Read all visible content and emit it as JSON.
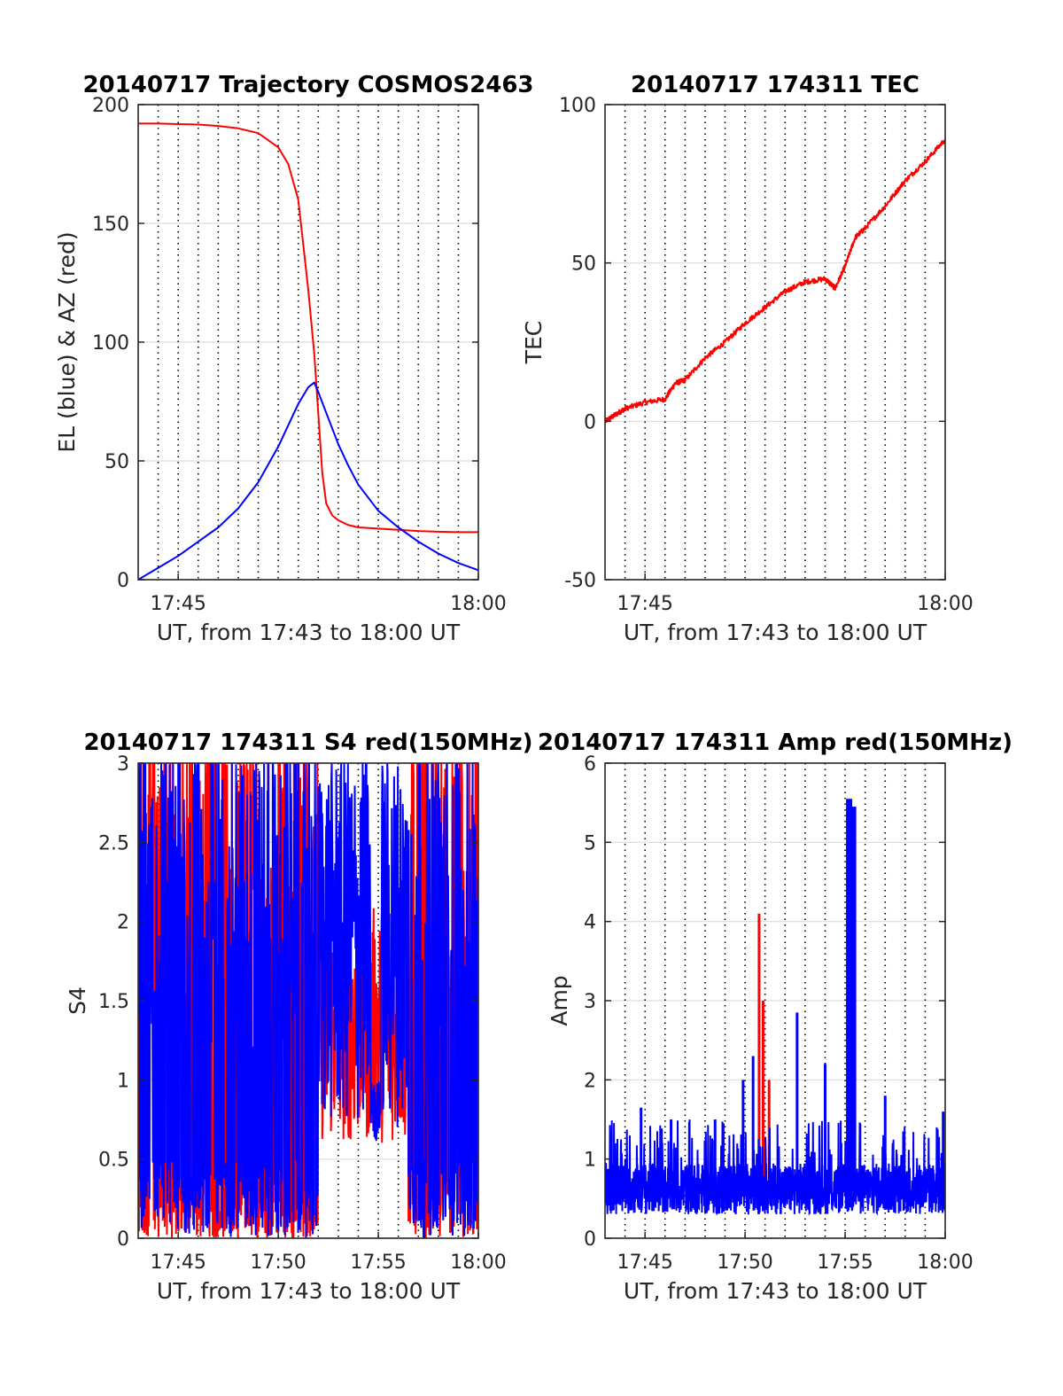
{
  "figure": {
    "colors": {
      "red": "#ff0000",
      "blue": "#0000ff",
      "axis": "#262626",
      "grid": "#dcdcdc"
    }
  },
  "chart_data": [
    {
      "type": "line",
      "title": "20140717 Trajectory COSMOS2463",
      "xlabel": "UT, from 17:43 to 18:00 UT",
      "ylabel": "EL (blue) & AZ (red)",
      "ylim": [
        0,
        200
      ],
      "yticks": [
        "0",
        "50",
        "100",
        "150",
        "200"
      ],
      "xlim_minutes": [
        43,
        60
      ],
      "xticks": [
        {
          "value": 45,
          "label": "17:45"
        },
        {
          "value": 60,
          "label": "18:00"
        }
      ],
      "vertical_dotted_grid_minutes": [
        44,
        45,
        46,
        47,
        48,
        49,
        50,
        51,
        52,
        53,
        54,
        55,
        56,
        57,
        58,
        59
      ],
      "grid": true,
      "series": [
        {
          "color": "red",
          "note": "AZ",
          "x": [
            43,
            44,
            45,
            46,
            47,
            48,
            49,
            50,
            50.5,
            51,
            51.5,
            51.8,
            52,
            52.2,
            52.4,
            52.7,
            53,
            53.5,
            54,
            55,
            56,
            57,
            58,
            59,
            60
          ],
          "y": [
            192,
            192,
            191.8,
            191.6,
            191,
            190,
            188,
            182,
            175,
            160,
            122,
            95,
            70,
            45,
            32,
            27,
            25,
            23,
            22,
            21.5,
            21,
            20.5,
            20.2,
            20,
            20
          ]
        },
        {
          "color": "blue",
          "note": "EL",
          "x": [
            43,
            44,
            45,
            46,
            47,
            48,
            49,
            50,
            50.5,
            51,
            51.5,
            51.8,
            52,
            52.5,
            53,
            53.5,
            54,
            55,
            56,
            57,
            58,
            59,
            60
          ],
          "y": [
            0,
            5,
            10,
            16,
            22,
            30,
            41,
            56,
            65,
            74,
            81,
            83,
            79,
            68,
            57,
            48,
            40,
            29,
            22,
            16,
            11,
            7,
            4
          ]
        }
      ]
    },
    {
      "type": "line",
      "title": "20140717 174311 TEC",
      "xlabel": "UT, from 17:43 to 18:00 UT",
      "ylabel": "TEC",
      "ylim": [
        -50,
        100
      ],
      "yticks": [
        "-50",
        "0",
        "50",
        "100"
      ],
      "xlim_minutes": [
        43,
        60
      ],
      "xticks": [
        {
          "value": 45,
          "label": "17:45"
        },
        {
          "value": 60,
          "label": "18:00"
        }
      ],
      "vertical_dotted_grid_minutes": [
        44,
        45,
        46,
        47,
        48,
        49,
        50,
        51,
        52,
        53,
        54,
        55,
        56,
        57,
        58,
        59
      ],
      "grid": true,
      "series": [
        {
          "color": "red",
          "x": [
            43,
            43.5,
            44,
            45,
            46,
            46.5,
            47,
            48,
            49,
            50,
            51,
            52,
            53,
            54,
            54.5,
            55,
            55.5,
            56,
            57,
            58,
            59,
            60
          ],
          "y": [
            0,
            2,
            4,
            6,
            7,
            12,
            13,
            20,
            25,
            31,
            36,
            41,
            44,
            45,
            42,
            49,
            58,
            61,
            68,
            76,
            82,
            89
          ]
        }
      ]
    },
    {
      "type": "line",
      "title": "20140717 174311 S4 red(150MHz)",
      "xlabel": "UT, from 17:43 to 18:00 UT",
      "ylabel": "S4",
      "ylim": [
        0,
        3
      ],
      "yticks": [
        "0",
        "0.5",
        "1",
        "1.5",
        "2",
        "2.5",
        "3"
      ],
      "xlim_minutes": [
        43,
        60
      ],
      "xticks": [
        {
          "value": 45,
          "label": "17:45"
        },
        {
          "value": 50,
          "label": "17:50"
        },
        {
          "value": 55,
          "label": "17:55"
        },
        {
          "value": 60,
          "label": "18:00"
        }
      ],
      "vertical_dotted_grid_minutes": [
        44,
        45,
        46,
        47,
        48,
        49,
        50,
        51,
        52,
        53,
        54,
        55,
        56,
        57,
        58,
        59
      ],
      "grid": true,
      "series": [
        {
          "color": "red",
          "note": "values clipped at 3; dense rapid oscillation 0–3 across the whole interval, band 0.5–2 between 17:52 and 17:56"
        },
        {
          "color": "blue",
          "note": "values clipped at 3; dense rapid oscillation 0–3, dips near 0.6 around 17:55"
        }
      ]
    },
    {
      "type": "line",
      "title": "20140717 174311 Amp red(150MHz)",
      "xlabel": "UT, from 17:43 to 18:00 UT",
      "ylabel": "Amp",
      "ylim": [
        0,
        6
      ],
      "yticks": [
        "0",
        "1",
        "2",
        "3",
        "4",
        "5",
        "6"
      ],
      "xlim_minutes": [
        43,
        60
      ],
      "xticks": [
        {
          "value": 45,
          "label": "17:45"
        },
        {
          "value": 50,
          "label": "17:50"
        },
        {
          "value": 55,
          "label": "17:55"
        },
        {
          "value": 60,
          "label": "18:00"
        }
      ],
      "vertical_dotted_grid_minutes": [
        44,
        45,
        46,
        47,
        48,
        49,
        50,
        51,
        52,
        53,
        54,
        55,
        56,
        57,
        58,
        59
      ],
      "grid": true,
      "series": [
        {
          "color": "red",
          "spikes": [
            {
              "x": 50.7,
              "y": 4.1
            },
            {
              "x": 50.9,
              "y": 3.0
            },
            {
              "x": 51.2,
              "y": 2.0
            }
          ]
        },
        {
          "color": "blue",
          "note": "dense noise floor ~0.3–1.0",
          "spikes": [
            {
              "x": 44.8,
              "y": 1.65
            },
            {
              "x": 46.3,
              "y": 1.5
            },
            {
              "x": 48.5,
              "y": 1.5
            },
            {
              "x": 49.9,
              "y": 2.0
            },
            {
              "x": 50.4,
              "y": 2.3
            },
            {
              "x": 52.6,
              "y": 2.85
            },
            {
              "x": 54.0,
              "y": 2.2
            },
            {
              "x": 55.2,
              "y": 5.55
            },
            {
              "x": 55.4,
              "y": 5.45
            },
            {
              "x": 57.0,
              "y": 1.8
            },
            {
              "x": 59.9,
              "y": 1.6
            }
          ]
        }
      ]
    }
  ]
}
